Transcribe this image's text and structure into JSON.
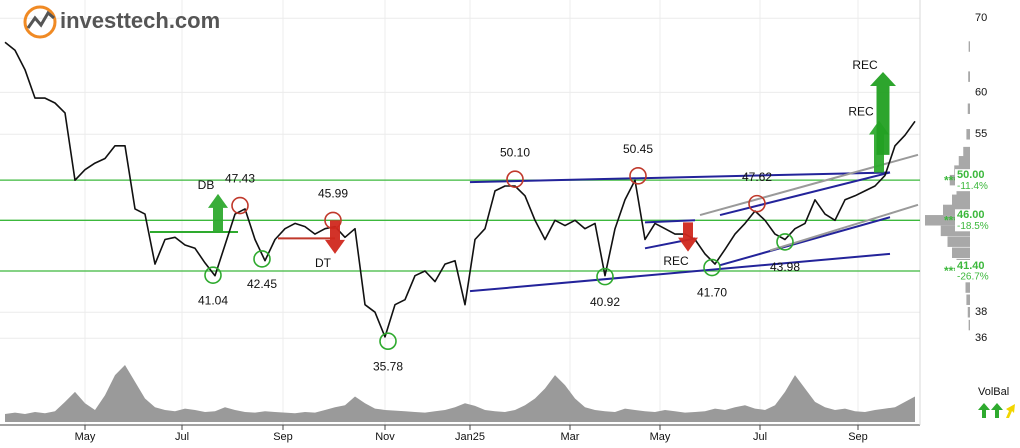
{
  "logo": "investtech.com",
  "chart_data": {
    "type": "line",
    "log_scale": true,
    "grid": true,
    "xlim": [
      -0.5,
      91.5
    ],
    "xticks": [
      {
        "value": 8,
        "label": "May"
      },
      {
        "value": 17.7,
        "label": "Jul"
      },
      {
        "value": 27.8,
        "label": "Sep"
      },
      {
        "value": 38,
        "label": "Nov"
      },
      {
        "value": 46.5,
        "label": "Jan25"
      },
      {
        "value": 56.5,
        "label": "Mar"
      },
      {
        "value": 65.5,
        "label": "May"
      },
      {
        "value": 75.5,
        "label": "Jul"
      },
      {
        "value": 85.3,
        "label": "Sep"
      }
    ],
    "ylim": [
      35.5,
      72.7
    ],
    "yticks": [
      36,
      38,
      55,
      60,
      70
    ],
    "series": [
      {
        "color": "#111111",
        "values": [
          66.6,
          65.5,
          62.9,
          59.3,
          59.3,
          58.7,
          57.5,
          50.0,
          51.1,
          51.8,
          52.3,
          53.7,
          53.7,
          47.1,
          46.6,
          42.0,
          44.2,
          44.4,
          43.7,
          43.4,
          42.1,
          41.0,
          43.7,
          46.6,
          47.1,
          44.2,
          42.3,
          44.2,
          45.2,
          45.7,
          45.4,
          44.7,
          45.2,
          45.4,
          44.4,
          45.2,
          38.6,
          38.0,
          36.1,
          38.6,
          39.0,
          41.0,
          41.4,
          40.5,
          42.0,
          42.3,
          38.6,
          44.2,
          45.2,
          48.9,
          49.4,
          49.4,
          48.4,
          46.0,
          44.2,
          46.0,
          45.5,
          46.0,
          45.2,
          45.7,
          41.0,
          45.2,
          48.0,
          50.0,
          44.2,
          45.7,
          45.2,
          44.7,
          44.7,
          44.2,
          42.9,
          42.0,
          43.3,
          44.7,
          45.7,
          46.9,
          46.0,
          44.7,
          44.2,
          45.2,
          45.7,
          48.0,
          46.6,
          46.0,
          48.0,
          48.4,
          48.9,
          49.4,
          50.5,
          53.7,
          54.9,
          56.5
        ]
      }
    ],
    "volume": {
      "color": "#9a9a9a",
      "ylim": [
        0,
        100
      ],
      "values": [
        12,
        14,
        12,
        15,
        13,
        16,
        30,
        45,
        28,
        18,
        40,
        70,
        85,
        60,
        35,
        22,
        18,
        16,
        20,
        18,
        15,
        16,
        22,
        18,
        15,
        14,
        16,
        15,
        14,
        13,
        15,
        14,
        18,
        22,
        25,
        38,
        28,
        20,
        18,
        17,
        16,
        15,
        14,
        16,
        18,
        22,
        28,
        24,
        18,
        16,
        15,
        18,
        25,
        35,
        50,
        70,
        55,
        35,
        22,
        18,
        16,
        15,
        20,
        18,
        16,
        15,
        18,
        16,
        14,
        15,
        16,
        20,
        18,
        22,
        25,
        20,
        18,
        25,
        45,
        70,
        50,
        30,
        22,
        18,
        20,
        16,
        15,
        18,
        20,
        22,
        30,
        38
      ]
    },
    "volume_profile": {
      "color": "#a8a8a8",
      "prices": [
        37,
        38,
        39,
        40,
        41,
        42,
        43,
        44,
        45,
        46,
        47,
        48,
        49,
        50,
        51,
        52,
        53,
        55,
        58,
        62,
        66
      ],
      "values": [
        3,
        5,
        8,
        10,
        25,
        30,
        40,
        50,
        65,
        100,
        60,
        40,
        30,
        45,
        35,
        25,
        15,
        8,
        5,
        4,
        3
      ]
    },
    "levels": [
      {
        "value": 50,
        "label": "50.00",
        "change": "-11.4%",
        "rating": "***"
      },
      {
        "value": 46,
        "label": "46.00",
        "change": "-18.5%",
        "rating": "***"
      },
      {
        "value": 41.4,
        "label": "41.40",
        "change": "-26.7%",
        "rating": "***"
      }
    ],
    "level_color": "#3cb83c",
    "trend_lines": [
      {
        "x": [
          46.5,
          88.5
        ],
        "y": [
          39.7,
          42.9
        ],
        "color": "#23239a"
      },
      {
        "x": [
          46.5,
          88.5
        ],
        "y": [
          49.8,
          50.8
        ],
        "color": "#23239a"
      },
      {
        "x": [
          64,
          69
        ],
        "y": [
          45.8,
          46.0
        ],
        "color": "#23239a"
      },
      {
        "x": [
          64,
          69
        ],
        "y": [
          43.4,
          44.3
        ],
        "color": "#23239a"
      },
      {
        "x": [
          71.5,
          88.5
        ],
        "y": [
          46.5,
          50.8
        ],
        "color": "#23239a"
      },
      {
        "x": [
          71.5,
          88.5
        ],
        "y": [
          41.9,
          46.3
        ],
        "color": "#23239a"
      },
      {
        "x": [
          69.5,
          91.3
        ],
        "y": [
          46.5,
          52.7
        ],
        "color": "#9a9a9a"
      },
      {
        "x": [
          76.5,
          91.3
        ],
        "y": [
          43.2,
          47.5
        ],
        "color": "#9a9a9a"
      },
      {
        "x": [
          14.5,
          23.3
        ],
        "y": [
          44.9,
          44.9
        ],
        "color": "#2eaa2e"
      },
      {
        "x": [
          27.3,
          33
        ],
        "y": [
          44.3,
          44.3
        ],
        "color": "#c0392b"
      }
    ],
    "annotations": [
      {
        "x": 23.5,
        "value": 47.43,
        "label": "47.43",
        "kind": "top"
      },
      {
        "x": 32.8,
        "value": 45.99,
        "label": "45.99",
        "kind": "top"
      },
      {
        "x": 51,
        "value": 50.1,
        "label": "50.10",
        "kind": "top"
      },
      {
        "x": 63.3,
        "value": 50.45,
        "label": "50.45",
        "kind": "top"
      },
      {
        "x": 75.2,
        "value": 47.62,
        "label": "47.62",
        "kind": "top"
      },
      {
        "x": 20.8,
        "value": 41.04,
        "label": "41.04",
        "kind": "bottom"
      },
      {
        "x": 25.7,
        "value": 42.45,
        "label": "42.45",
        "kind": "bottom"
      },
      {
        "x": 38.3,
        "value": 35.78,
        "label": "35.78",
        "kind": "bottom"
      },
      {
        "x": 60,
        "value": 40.92,
        "label": "40.92",
        "kind": "bottom"
      },
      {
        "x": 70.7,
        "value": 41.7,
        "label": "41.70",
        "kind": "bottom"
      },
      {
        "x": 78,
        "value": 43.98,
        "label": "43.98",
        "kind": "bottom"
      }
    ],
    "signals": [
      {
        "label": "DB",
        "x": 21.3,
        "from": 44.9,
        "to": 48.6,
        "color": "#2eaa2e"
      },
      {
        "label": "DT",
        "x": 33,
        "from": 46.0,
        "to": 42.9,
        "color": "#d0281e"
      },
      {
        "label": "REC",
        "x": 68.3,
        "from": 45.8,
        "to": 43.1,
        "color": "#d0281e"
      },
      {
        "label": "REC",
        "x": 87.4,
        "from": 50.8,
        "to": 56.6,
        "color": "#2eaa2e"
      },
      {
        "label": "REC",
        "x": 87.8,
        "from": 52.7,
        "to": 62.6,
        "color": "#22a022"
      }
    ],
    "volume_label": "VolBal"
  }
}
